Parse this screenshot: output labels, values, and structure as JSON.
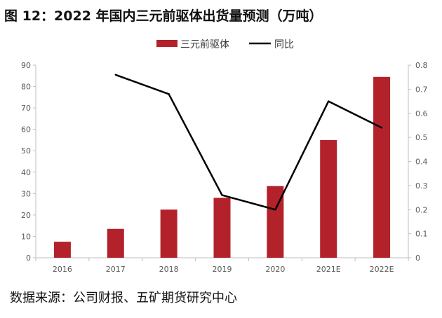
{
  "title": "图 12：2022 年国内三元前驱体出货量预测（万吨）",
  "source": "数据来源：公司财报、五矿期货研究中心",
  "colors": {
    "bar": "#b3222b",
    "line": "#000000",
    "axis": "#bfbfbf",
    "tick_text": "#595959"
  },
  "chart_data": {
    "type": "bar",
    "categories": [
      "2016",
      "2017",
      "2018",
      "2019",
      "2020",
      "2021E",
      "2022E"
    ],
    "series": [
      {
        "name": "三元前驱体",
        "type": "bar",
        "axis": "left",
        "values": [
          7.5,
          13.5,
          22.5,
          28,
          33.5,
          55,
          84.5
        ]
      },
      {
        "name": "同比",
        "type": "line",
        "axis": "right",
        "values": [
          null,
          0.76,
          0.68,
          0.26,
          0.2,
          0.65,
          0.54
        ]
      }
    ],
    "y_left": {
      "ylim": [
        0,
        90
      ],
      "ticks": [
        "0",
        "10",
        "20",
        "30",
        "40",
        "50",
        "60",
        "70",
        "80",
        "90"
      ]
    },
    "y_right": {
      "ylim": [
        0,
        0.8
      ],
      "ticks": [
        "0",
        "0.1",
        "0.2",
        "0.3",
        "0.4",
        "0.5",
        "0.6",
        "0.7",
        "0.8"
      ]
    },
    "legend_position": "top-center",
    "grid": false
  }
}
